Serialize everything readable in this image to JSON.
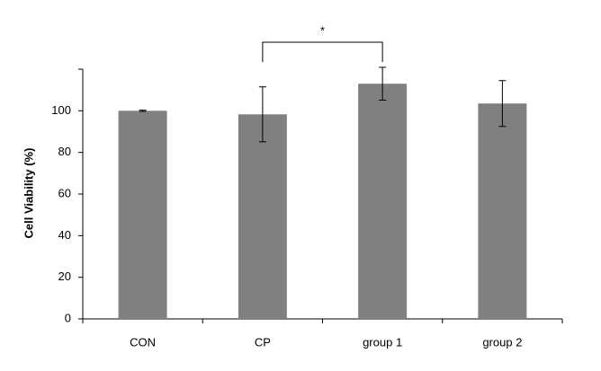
{
  "chart_data": {
    "type": "bar",
    "y_label": "Cell Viability (%)",
    "categories": [
      "CON",
      "CP",
      "group 1",
      "group 2"
    ],
    "values": [
      100,
      98.3,
      113,
      103.5
    ],
    "errors": [
      0.3,
      13.2,
      7.9,
      11
    ],
    "color": "#808080",
    "ylim": [
      0,
      120
    ],
    "yticks": [
      0,
      20,
      40,
      60,
      80,
      100
    ],
    "annotation": "*",
    "annotation_between": [
      1,
      2
    ]
  }
}
